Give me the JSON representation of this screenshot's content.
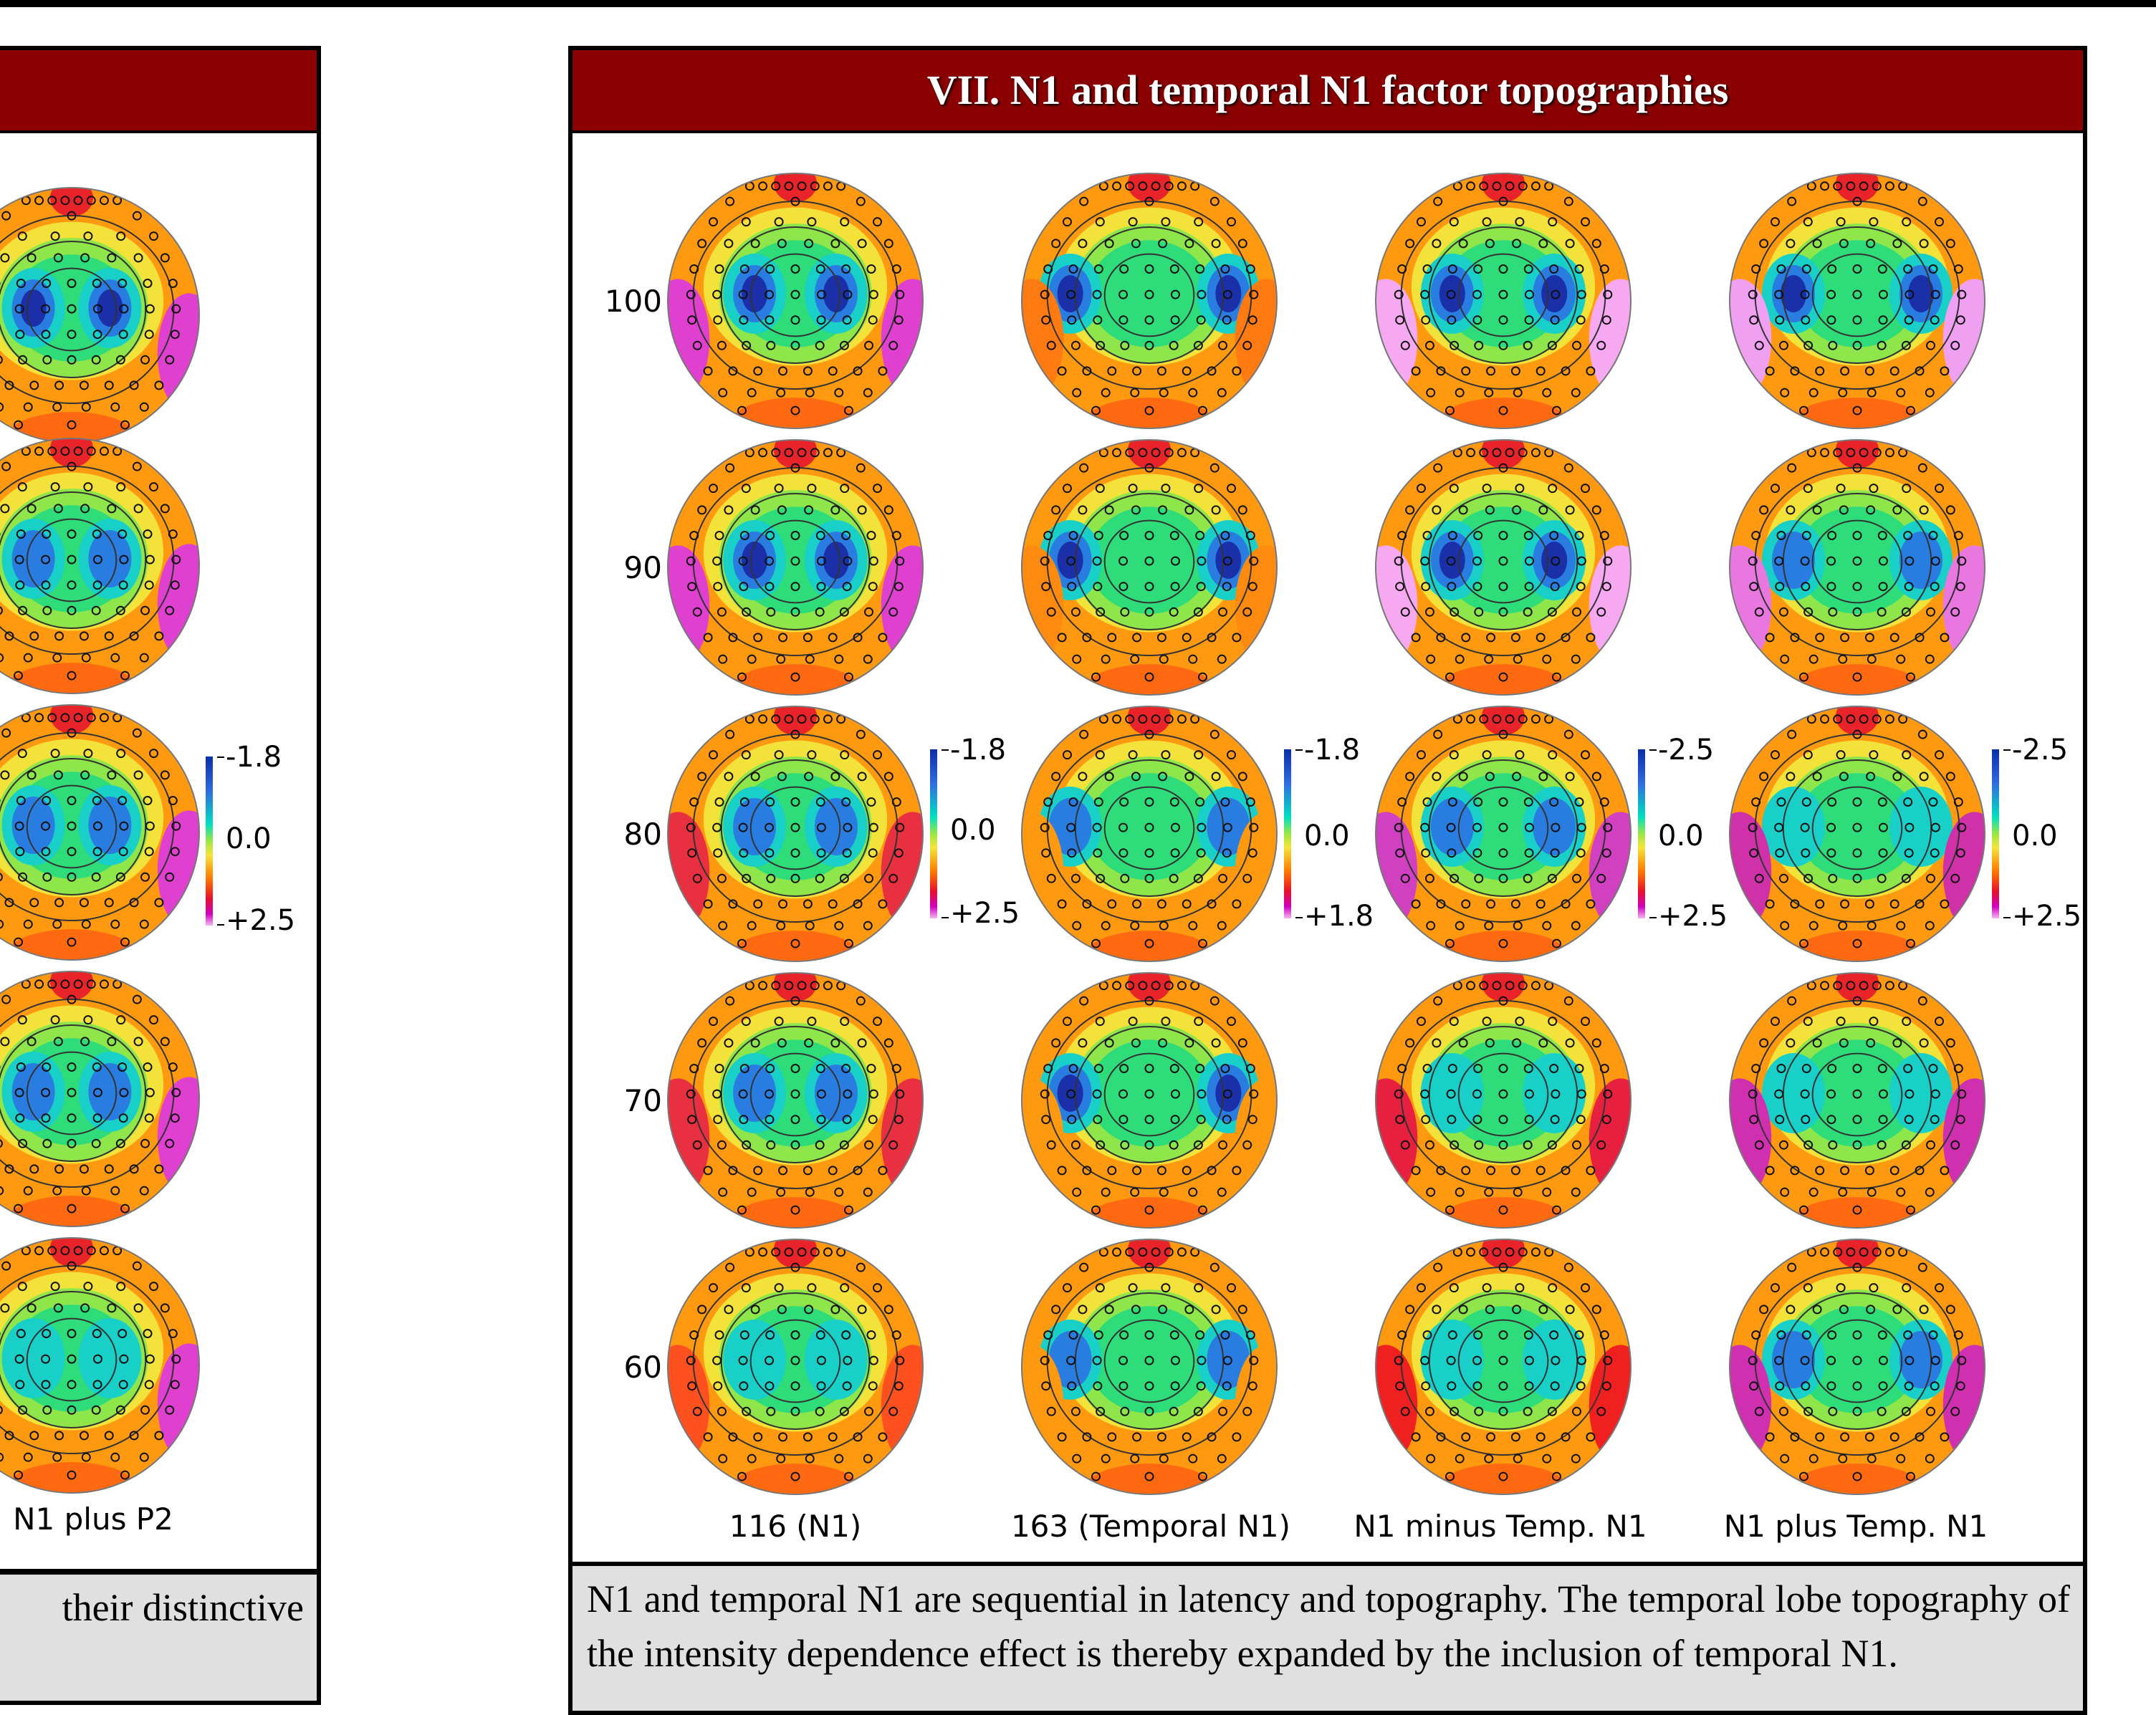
{
  "right_panel": {
    "title": "VII. N1 and temporal N1 factor topographies",
    "row_labels": [
      "100",
      "90",
      "80",
      "70",
      "60"
    ],
    "column_labels": [
      "116  (N1)",
      "163  (Temporal N1)",
      "N1 minus Temp. N1",
      "N1 plus Temp. N1"
    ],
    "scales": [
      {
        "top": "-1.8",
        "mid": "0.0",
        "bottom": "+2.5"
      },
      {
        "top": "-1.8",
        "mid": "0.0",
        "bottom": "+1.8"
      },
      {
        "top": "-2.5",
        "mid": "0.0",
        "bottom": "+2.5"
      },
      {
        "top": "-2.5",
        "mid": "0.0",
        "bottom": "+2.5"
      }
    ],
    "caption": "N1 and temporal N1 are sequential in latency and topography. The temporal lobe topography of the intensity dependence effect is thereby expanded by the inclusion of temporal N1."
  },
  "left_panel": {
    "column_label": "N1 plus P2",
    "scale": {
      "top": "-1.8",
      "mid": "0.0",
      "bottom": "+2.5"
    },
    "caption": "their distinctive"
  },
  "colors": {
    "header": "#8b0000",
    "caption_bg": "#e0e0e0",
    "negative_max": "#0a2ea8",
    "zero": "#9ae645",
    "positive_max": "#d000c0"
  }
}
